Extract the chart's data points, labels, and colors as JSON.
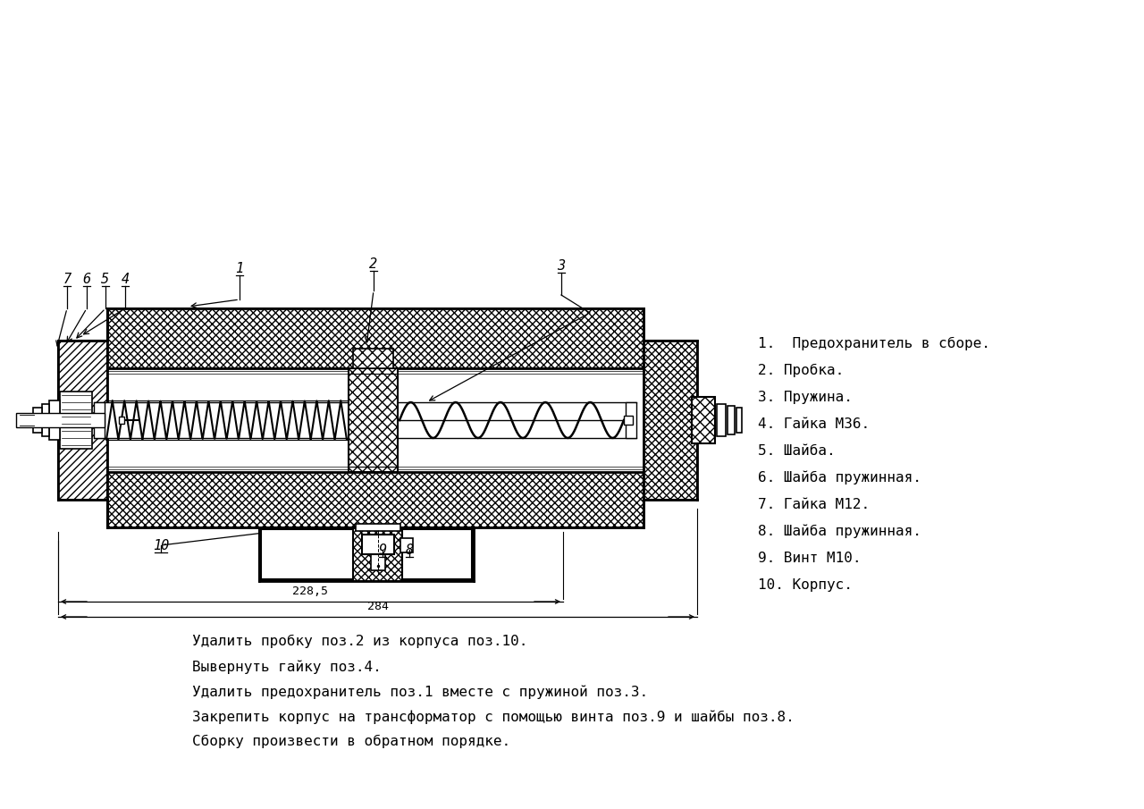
{
  "parts_list": [
    "1.  Предохранитель в сборе.",
    "2. Пробка.",
    "3. Пружина.",
    "4. Гайка М36.",
    "5. Шайба.",
    "6. Шайба пружинная.",
    "7. Гайка М12.",
    "8. Шайба пружинная.",
    "9. Винт М10.",
    "10. Корпус."
  ],
  "instructions": [
    "Удалить пробку поз.2 из корпуса поз.10.",
    "Вывернуть гайку поз.4.",
    "Удалить предохранитель поз.1 вместе с пружиной поз.3.",
    "Закрепить корпус на трансформатор с помощью винта поз.9 и шайбы поз.8.",
    "Сборку произвести в обратном порядке."
  ],
  "dim1": "228,5",
  "dim2": "284"
}
